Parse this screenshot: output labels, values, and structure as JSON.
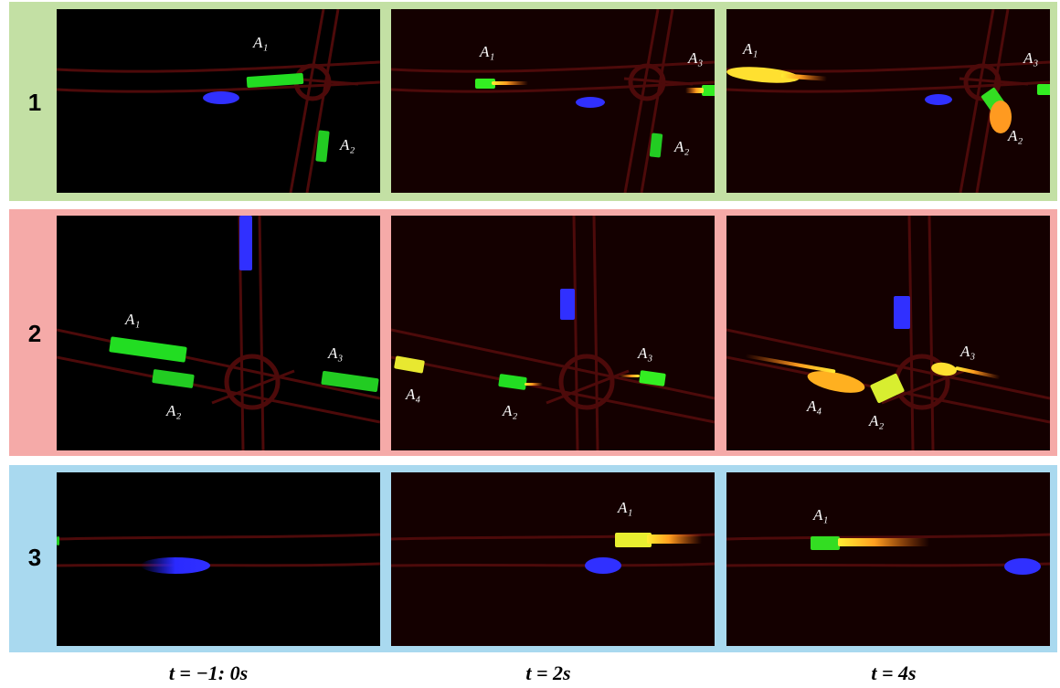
{
  "rows": [
    {
      "label": "1",
      "panels": [
        {
          "agents": [
            "A₁",
            "A₂"
          ]
        },
        {
          "agents": [
            "A₁",
            "A₃",
            "A₂"
          ]
        },
        {
          "agents": [
            "A₁",
            "A₃",
            "A₂"
          ]
        }
      ]
    },
    {
      "label": "2",
      "panels": [
        {
          "agents": [
            "A₁",
            "A₂",
            "A₃"
          ]
        },
        {
          "agents": [
            "A₄",
            "A₂",
            "A₃"
          ]
        },
        {
          "agents": [
            "A₄",
            "A₂",
            "A₃"
          ]
        }
      ]
    },
    {
      "label": "3",
      "panels": [
        {
          "agents": []
        },
        {
          "agents": [
            "A₁"
          ]
        },
        {
          "agents": [
            "A₁"
          ]
        }
      ]
    }
  ],
  "columns": [
    "t = −1: 0s",
    "t = 2s",
    "t = 4s"
  ]
}
